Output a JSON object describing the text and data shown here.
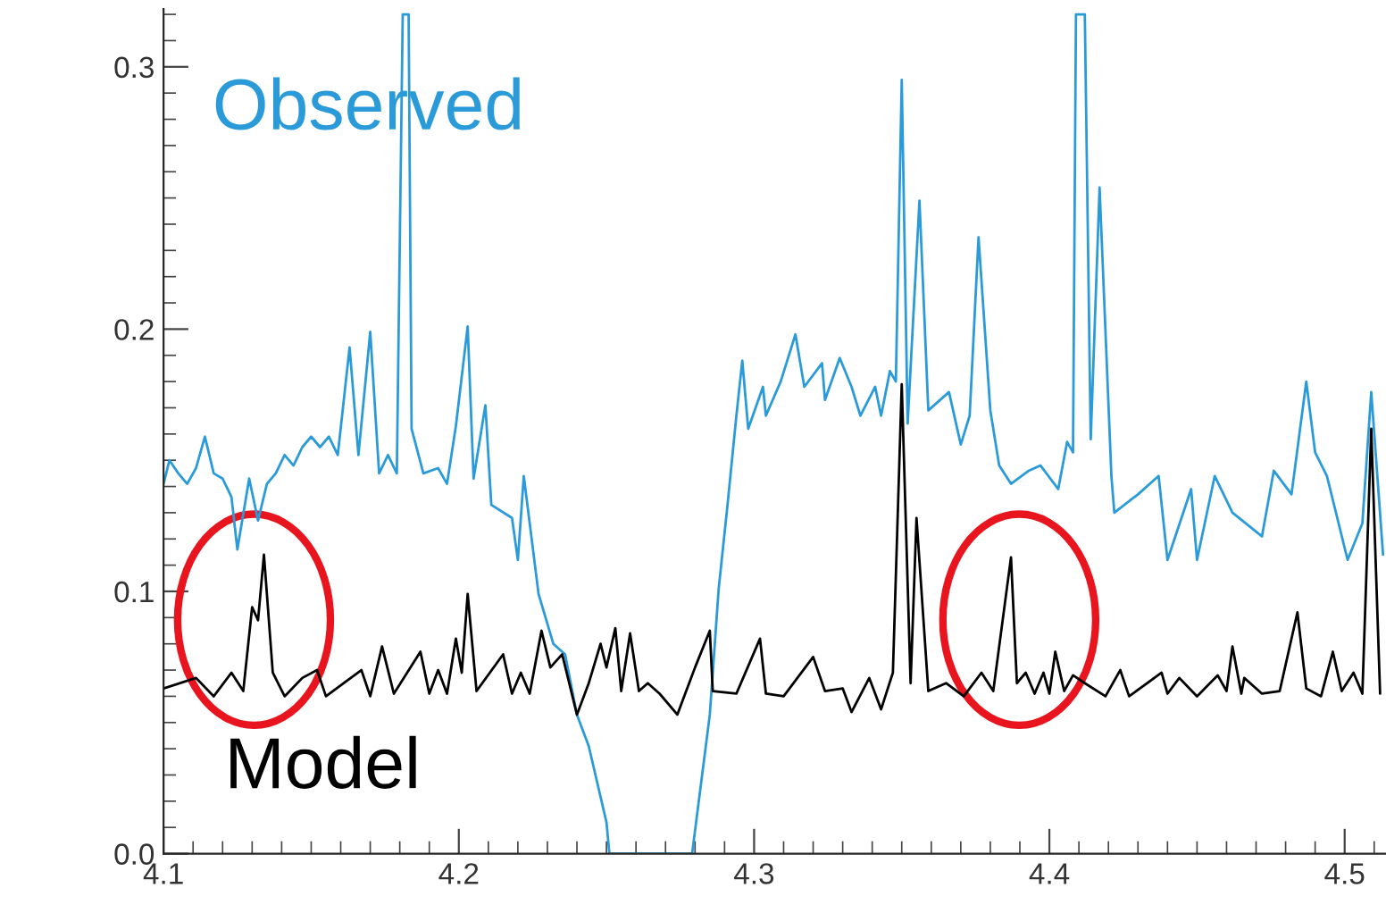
{
  "chart_data": {
    "type": "line",
    "xlim": [
      4.1,
      4.514
    ],
    "ylim": [
      0,
      0.322
    ],
    "xticks": [
      4.1,
      4.2,
      4.3,
      4.4,
      4.5
    ],
    "yticks": [
      {
        "value": 0,
        "label": "0.0"
      },
      {
        "value": 0.1,
        "label": "0.1"
      },
      {
        "value": 0.2,
        "label": "0.2"
      },
      {
        "value": 0.3,
        "label": "0.3"
      }
    ],
    "grid": false,
    "legend": false,
    "marker": "none",
    "line_style": "solid",
    "series": [
      {
        "name": "Observed",
        "color": "#2a9bd8",
        "x": [
          4.1,
          4.102,
          4.105,
          4.108,
          4.111,
          4.114,
          4.117,
          4.12,
          4.123,
          4.125,
          4.129,
          4.132,
          4.135,
          4.138,
          4.141,
          4.144,
          4.147,
          4.15,
          4.153,
          4.156,
          4.159,
          4.163,
          4.166,
          4.17,
          4.173,
          4.176,
          4.179,
          4.181,
          4.183,
          4.184,
          4.188,
          4.193,
          4.196,
          4.199,
          4.203,
          4.205,
          4.209,
          4.211,
          4.218,
          4.22,
          4.222,
          4.227,
          4.232,
          4.236,
          4.24,
          4.244,
          4.25,
          4.251,
          4.279,
          4.285,
          4.288,
          4.291,
          4.294,
          4.296,
          4.298,
          4.303,
          4.304,
          4.309,
          4.314,
          4.317,
          4.323,
          4.324,
          4.329,
          4.333,
          4.336,
          4.341,
          4.343,
          4.346,
          4.348,
          4.35,
          4.352,
          4.356,
          4.359,
          4.366,
          4.37,
          4.373,
          4.376,
          4.38,
          4.383,
          4.387,
          4.393,
          4.397,
          4.403,
          4.406,
          4.408,
          4.409,
          4.412,
          4.414,
          4.417,
          4.421,
          4.422,
          4.43,
          4.437,
          4.44,
          4.448,
          4.45,
          4.456,
          4.462,
          4.472,
          4.476,
          4.482,
          4.487,
          4.49,
          4.494,
          4.501,
          4.506,
          4.509,
          4.513
        ],
        "values": [
          0.141,
          0.15,
          0.145,
          0.141,
          0.147,
          0.159,
          0.145,
          0.143,
          0.136,
          0.116,
          0.143,
          0.127,
          0.141,
          0.145,
          0.152,
          0.148,
          0.155,
          0.159,
          0.155,
          0.159,
          0.152,
          0.193,
          0.152,
          0.199,
          0.145,
          0.152,
          0.145,
          0.32,
          0.32,
          0.162,
          0.145,
          0.147,
          0.141,
          0.163,
          0.201,
          0.143,
          0.171,
          0.133,
          0.128,
          0.112,
          0.144,
          0.099,
          0.08,
          0.076,
          0.053,
          0.041,
          0.012,
          0,
          0,
          0.053,
          0.101,
          0.133,
          0.167,
          0.188,
          0.162,
          0.178,
          0.167,
          0.18,
          0.198,
          0.178,
          0.187,
          0.173,
          0.189,
          0.178,
          0.167,
          0.178,
          0.167,
          0.184,
          0.18,
          0.295,
          0.164,
          0.249,
          0.169,
          0.176,
          0.156,
          0.167,
          0.235,
          0.169,
          0.148,
          0.141,
          0.146,
          0.148,
          0.139,
          0.157,
          0.153,
          0.32,
          0.32,
          0.158,
          0.254,
          0.144,
          0.13,
          0.137,
          0.144,
          0.112,
          0.139,
          0.112,
          0.144,
          0.13,
          0.121,
          0.146,
          0.137,
          0.18,
          0.153,
          0.144,
          0.112,
          0.126,
          0.176,
          0.114
        ]
      },
      {
        "name": "Model",
        "color": "#000000",
        "x": [
          4.1,
          4.111,
          4.117,
          4.123,
          4.127,
          4.13,
          4.132,
          4.134,
          4.137,
          4.141,
          4.147,
          4.152,
          4.155,
          4.167,
          4.17,
          4.174,
          4.178,
          4.187,
          4.19,
          4.193,
          4.196,
          4.199,
          4.201,
          4.203,
          4.206,
          4.215,
          4.218,
          4.221,
          4.224,
          4.228,
          4.231,
          4.235,
          4.24,
          4.244,
          4.248,
          4.25,
          4.253,
          4.255,
          4.258,
          4.261,
          4.264,
          4.268,
          4.274,
          4.28,
          4.285,
          4.286,
          4.294,
          4.302,
          4.304,
          4.31,
          4.32,
          4.324,
          4.33,
          4.333,
          4.339,
          4.343,
          4.347,
          4.35,
          4.353,
          4.355,
          4.359,
          4.365,
          4.371,
          4.377,
          4.381,
          4.387,
          4.389,
          4.392,
          4.395,
          4.398,
          4.4,
          4.402,
          4.405,
          4.408,
          4.412,
          4.419,
          4.424,
          4.427,
          4.438,
          4.44,
          4.444,
          4.45,
          4.457,
          4.46,
          4.462,
          4.465,
          4.466,
          4.472,
          4.478,
          4.484,
          4.487,
          4.492,
          4.496,
          4.499,
          4.503,
          4.506,
          4.509,
          4.512
        ],
        "values": [
          0.063,
          0.067,
          0.06,
          0.069,
          0.062,
          0.094,
          0.089,
          0.114,
          0.069,
          0.06,
          0.067,
          0.07,
          0.06,
          0.07,
          0.06,
          0.079,
          0.061,
          0.077,
          0.061,
          0.07,
          0.061,
          0.082,
          0.069,
          0.099,
          0.062,
          0.076,
          0.061,
          0.069,
          0.061,
          0.085,
          0.071,
          0.076,
          0.053,
          0.065,
          0.08,
          0.071,
          0.086,
          0.062,
          0.084,
          0.062,
          0.065,
          0.061,
          0.053,
          0.071,
          0.085,
          0.062,
          0.061,
          0.082,
          0.061,
          0.06,
          0.075,
          0.062,
          0.063,
          0.054,
          0.067,
          0.055,
          0.069,
          0.179,
          0.065,
          0.128,
          0.062,
          0.065,
          0.06,
          0.069,
          0.062,
          0.113,
          0.065,
          0.069,
          0.061,
          0.069,
          0.061,
          0.077,
          0.062,
          0.068,
          0.065,
          0.06,
          0.07,
          0.06,
          0.069,
          0.061,
          0.067,
          0.06,
          0.068,
          0.062,
          0.079,
          0.061,
          0.067,
          0.061,
          0.062,
          0.092,
          0.063,
          0.06,
          0.077,
          0.062,
          0.069,
          0.061,
          0.162,
          0.061
        ]
      }
    ]
  }
}
